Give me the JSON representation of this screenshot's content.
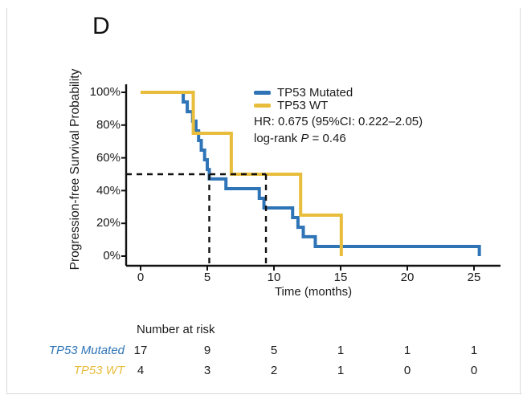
{
  "panel_label": "D",
  "colors": {
    "mutated": "#2e74b6",
    "wt": "#e8bd3c",
    "text": "#1b1b1b",
    "axis": "#111111",
    "median_dash": "#111111",
    "frame": "#d9d9d9"
  },
  "chart_data": {
    "type": "line",
    "subtype": "kaplan-meier-step",
    "title": "",
    "xlabel": "Time (months)",
    "ylabel": "Progression-free Survival Probability",
    "xlim": [
      0,
      26.5
    ],
    "ylim_percent": [
      0,
      100
    ],
    "x_ticks": [
      0,
      5,
      10,
      15,
      20,
      25
    ],
    "x_tick_labels": [
      "0",
      "5",
      "10",
      "15",
      "20",
      "25"
    ],
    "y_ticks_percent": [
      0,
      20,
      40,
      60,
      80,
      100
    ],
    "y_tick_labels": [
      "0%",
      "20%",
      "40%",
      "60%",
      "80%",
      "100%"
    ],
    "grid": false,
    "legend_position": "top-right-inside",
    "series": [
      {
        "name": "TP53 Mutated",
        "color": "#2e74b6",
        "steps_time_vs_percent": [
          [
            0,
            100
          ],
          [
            3.2,
            94.1
          ],
          [
            3.5,
            88.2
          ],
          [
            3.9,
            82.4
          ],
          [
            4.15,
            76.5
          ],
          [
            4.35,
            70.6
          ],
          [
            4.55,
            64.7
          ],
          [
            4.8,
            58.8
          ],
          [
            5.0,
            52.9
          ],
          [
            5.15,
            47.1
          ],
          [
            6.4,
            41.2
          ],
          [
            8.9,
            35.3
          ],
          [
            9.25,
            29.4
          ],
          [
            11.4,
            23.5
          ],
          [
            11.8,
            17.6
          ],
          [
            12.2,
            11.8
          ],
          [
            13.1,
            5.9
          ],
          [
            25.4,
            0
          ]
        ]
      },
      {
        "name": "TP53 WT",
        "color": "#e8bd3c",
        "steps_time_vs_percent": [
          [
            0,
            100
          ],
          [
            3.95,
            75
          ],
          [
            6.8,
            50
          ],
          [
            12.0,
            25
          ],
          [
            15.05,
            0
          ]
        ]
      }
    ],
    "median_lines": {
      "survival_percent": 50,
      "median_times": [
        5.15,
        9.4
      ],
      "horizontal_extends_to_time": 9.4
    },
    "annotations": {
      "hr_text": "HR: 0.675 (95%CI: 0.222–2.05)",
      "logrank_prefix": "log-rank ",
      "logrank_p_symbol": "P",
      "logrank_suffix": " = 0.46"
    }
  },
  "legend": {
    "items": [
      {
        "label": "TP53 Mutated",
        "color": "#2e74b6"
      },
      {
        "label": "TP53 WT",
        "color": "#e8bd3c"
      }
    ]
  },
  "risk_table": {
    "title": "Number at risk",
    "time_points": [
      0,
      5,
      10,
      15,
      20,
      25
    ],
    "rows": [
      {
        "label": "TP53 Mutated",
        "color": "#2e74b6",
        "values": [
          "17",
          "9",
          "5",
          "1",
          "1",
          "1"
        ]
      },
      {
        "label": "TP53 WT",
        "color": "#e8bd3c",
        "values": [
          "4",
          "3",
          "2",
          "1",
          "0",
          "0"
        ]
      }
    ]
  }
}
